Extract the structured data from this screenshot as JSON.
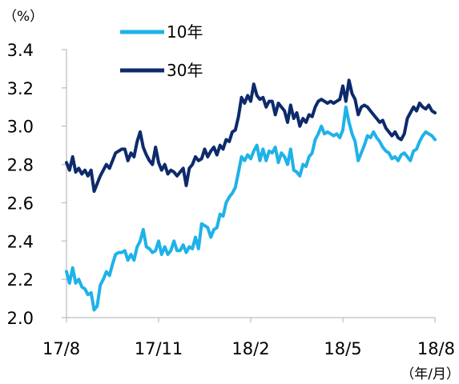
{
  "chart_data": {
    "type": "line",
    "unit_label": "（%）",
    "x_unit_label": "（年/月）",
    "ylim": [
      2.0,
      3.4
    ],
    "y_ticks": [
      "2.0",
      "2.2",
      "2.4",
      "2.6",
      "2.8",
      "3.0",
      "3.2",
      "3.4"
    ],
    "x_ticks": [
      "17/8",
      "17/11",
      "18/2",
      "18/5",
      "18/8"
    ],
    "xlim": [
      0,
      12
    ],
    "grid": false,
    "legend_position": "top",
    "series": [
      {
        "name": "10年",
        "color": "#1fb2e8",
        "x": [
          0,
          0.1,
          0.2,
          0.3,
          0.4,
          0.5,
          0.6,
          0.7,
          0.8,
          0.9,
          1.0,
          1.1,
          1.2,
          1.3,
          1.4,
          1.5,
          1.6,
          1.7,
          1.8,
          1.9,
          2.0,
          2.1,
          2.2,
          2.3,
          2.4,
          2.5,
          2.6,
          2.7,
          2.8,
          2.9,
          3.0,
          3.1,
          3.2,
          3.3,
          3.4,
          3.5,
          3.6,
          3.7,
          3.8,
          3.9,
          4.0,
          4.1,
          4.2,
          4.3,
          4.4,
          4.5,
          4.6,
          4.7,
          4.8,
          4.9,
          5.0,
          5.1,
          5.2,
          5.3,
          5.4,
          5.5,
          5.6,
          5.7,
          5.8,
          5.9,
          6.0,
          6.1,
          6.2,
          6.3,
          6.4,
          6.5,
          6.6,
          6.7,
          6.8,
          6.9,
          7.0,
          7.1,
          7.2,
          7.3,
          7.4,
          7.5,
          7.6,
          7.7,
          7.8,
          7.9,
          8.0,
          8.1,
          8.2,
          8.3,
          8.4,
          8.5,
          8.6,
          8.7,
          8.8,
          8.9,
          9.0,
          9.1,
          9.2,
          9.3,
          9.4,
          9.5,
          9.6,
          9.7,
          9.8,
          9.9,
          10.0,
          10.1,
          10.2,
          10.3,
          10.4,
          10.5,
          10.6,
          10.7,
          10.8,
          10.9,
          11.0,
          11.1,
          11.2,
          11.3,
          11.4,
          11.5,
          11.6,
          11.7,
          11.8,
          11.9,
          12.0
        ],
        "values": [
          2.24,
          2.18,
          2.26,
          2.18,
          2.2,
          2.16,
          2.15,
          2.12,
          2.13,
          2.04,
          2.06,
          2.17,
          2.2,
          2.24,
          2.22,
          2.28,
          2.33,
          2.34,
          2.34,
          2.35,
          2.3,
          2.33,
          2.3,
          2.37,
          2.4,
          2.46,
          2.37,
          2.36,
          2.34,
          2.35,
          2.4,
          2.33,
          2.37,
          2.33,
          2.35,
          2.4,
          2.35,
          2.35,
          2.38,
          2.34,
          2.37,
          2.36,
          2.42,
          2.36,
          2.49,
          2.48,
          2.47,
          2.42,
          2.46,
          2.47,
          2.54,
          2.53,
          2.6,
          2.63,
          2.65,
          2.68,
          2.76,
          2.84,
          2.82,
          2.85,
          2.83,
          2.87,
          2.9,
          2.82,
          2.88,
          2.82,
          2.87,
          2.86,
          2.89,
          2.81,
          2.86,
          2.84,
          2.8,
          2.88,
          2.77,
          2.76,
          2.74,
          2.8,
          2.79,
          2.84,
          2.86,
          2.93,
          2.96,
          3.0,
          2.96,
          2.97,
          2.96,
          2.95,
          2.96,
          2.94,
          2.98,
          3.1,
          3.02,
          2.96,
          2.92,
          2.82,
          2.86,
          2.9,
          2.95,
          2.94,
          2.97,
          2.94,
          2.92,
          2.89,
          2.87,
          2.86,
          2.83,
          2.84,
          2.82,
          2.85,
          2.86,
          2.84,
          2.82,
          2.87,
          2.88,
          2.92,
          2.95,
          2.97,
          2.96,
          2.95,
          2.93
        ]
      },
      {
        "name": "30年",
        "color": "#0d2a6b",
        "x": [
          0,
          0.1,
          0.2,
          0.3,
          0.4,
          0.5,
          0.6,
          0.7,
          0.8,
          0.9,
          1.0,
          1.1,
          1.2,
          1.3,
          1.4,
          1.5,
          1.6,
          1.7,
          1.8,
          1.9,
          2.0,
          2.1,
          2.2,
          2.3,
          2.4,
          2.5,
          2.6,
          2.7,
          2.8,
          2.9,
          3.0,
          3.1,
          3.2,
          3.3,
          3.4,
          3.5,
          3.6,
          3.7,
          3.8,
          3.9,
          4.0,
          4.1,
          4.2,
          4.3,
          4.4,
          4.5,
          4.6,
          4.7,
          4.8,
          4.9,
          5.0,
          5.1,
          5.2,
          5.3,
          5.4,
          5.5,
          5.6,
          5.7,
          5.8,
          5.9,
          6.0,
          6.1,
          6.2,
          6.3,
          6.4,
          6.5,
          6.6,
          6.7,
          6.8,
          6.9,
          7.0,
          7.1,
          7.2,
          7.3,
          7.4,
          7.5,
          7.6,
          7.7,
          7.8,
          7.9,
          8.0,
          8.1,
          8.2,
          8.3,
          8.4,
          8.5,
          8.6,
          8.7,
          8.8,
          8.9,
          9.0,
          9.1,
          9.2,
          9.3,
          9.4,
          9.5,
          9.6,
          9.7,
          9.8,
          9.9,
          10.0,
          10.1,
          10.2,
          10.3,
          10.4,
          10.5,
          10.6,
          10.7,
          10.8,
          10.9,
          11.0,
          11.1,
          11.2,
          11.3,
          11.4,
          11.5,
          11.6,
          11.7,
          11.8,
          11.9,
          12.0
        ],
        "values": [
          2.81,
          2.77,
          2.84,
          2.76,
          2.78,
          2.75,
          2.77,
          2.74,
          2.77,
          2.66,
          2.7,
          2.74,
          2.77,
          2.8,
          2.78,
          2.82,
          2.86,
          2.87,
          2.88,
          2.88,
          2.82,
          2.86,
          2.84,
          2.92,
          2.97,
          2.89,
          2.85,
          2.82,
          2.8,
          2.89,
          2.81,
          2.77,
          2.8,
          2.75,
          2.77,
          2.76,
          2.74,
          2.76,
          2.78,
          2.69,
          2.78,
          2.8,
          2.84,
          2.82,
          2.83,
          2.88,
          2.84,
          2.87,
          2.89,
          2.85,
          2.9,
          2.88,
          2.93,
          2.92,
          2.97,
          2.98,
          3.05,
          3.15,
          3.12,
          3.16,
          3.13,
          3.22,
          3.16,
          3.14,
          3.15,
          3.1,
          3.13,
          3.13,
          3.06,
          3.12,
          3.1,
          3.08,
          3.02,
          3.11,
          3.04,
          3.07,
          3.0,
          3.04,
          3.02,
          3.06,
          3.05,
          3.1,
          3.13,
          3.14,
          3.13,
          3.12,
          3.13,
          3.12,
          3.13,
          3.14,
          3.21,
          3.13,
          3.24,
          3.17,
          3.14,
          3.06,
          3.1,
          3.11,
          3.1,
          3.08,
          3.06,
          3.04,
          3.02,
          3.03,
          2.99,
          2.97,
          2.95,
          2.97,
          2.94,
          2.93,
          2.96,
          3.04,
          3.07,
          3.1,
          3.08,
          3.12,
          3.1,
          3.09,
          3.11,
          3.08,
          3.07
        ]
      }
    ]
  }
}
